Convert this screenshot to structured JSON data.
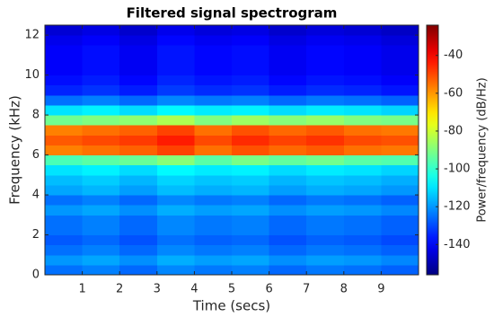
{
  "chart_data": {
    "type": "heatmap",
    "title": "Filtered signal spectrogram",
    "x_label": "Time (secs)",
    "y_label": "Frequency (kHz)",
    "colorbar_label": "Power/frequency (dB/Hz)",
    "colormap": "jet",
    "xlim": [
      0,
      10
    ],
    "xticks": [
      1,
      2,
      3,
      4,
      5,
      6,
      7,
      8,
      9
    ],
    "ylim": [
      0,
      12.5
    ],
    "yticks": [
      0,
      2,
      4,
      6,
      8,
      10,
      12
    ],
    "clim": [
      -156,
      -24
    ],
    "cticks": [
      -140,
      -120,
      -100,
      -80,
      -60,
      -40
    ],
    "z": [
      [
        -125,
        -123,
        -126,
        -122,
        -124,
        -123,
        -126,
        -124,
        -125,
        -127
      ],
      [
        -120,
        -118,
        -121,
        -117,
        -119,
        -118,
        -121,
        -119,
        -120,
        -122
      ],
      [
        -125,
        -123,
        -126,
        -122,
        -124,
        -123,
        -126,
        -124,
        -125,
        -127
      ],
      [
        -128,
        -126,
        -129,
        -125,
        -127,
        -126,
        -129,
        -127,
        -128,
        -130
      ],
      [
        -125,
        -123,
        -126,
        -122,
        -124,
        -123,
        -126,
        -124,
        -125,
        -127
      ],
      [
        -125,
        -123,
        -126,
        -122,
        -124,
        -123,
        -126,
        -124,
        -125,
        -127
      ],
      [
        -120,
        -118,
        -121,
        -117,
        -119,
        -118,
        -121,
        -119,
        -120,
        -122
      ],
      [
        -125,
        -123,
        -126,
        -122,
        -124,
        -123,
        -126,
        -124,
        -125,
        -127
      ],
      [
        -118,
        -116,
        -119,
        -115,
        -117,
        -116,
        -119,
        -117,
        -118,
        -120
      ],
      [
        -115,
        -113,
        -116,
        -112,
        -114,
        -113,
        -116,
        -114,
        -115,
        -117
      ],
      [
        -110,
        -108,
        -111,
        -107,
        -109,
        -108,
        -111,
        -109,
        -110,
        -112
      ],
      [
        -97,
        -95,
        -93,
        -89,
        -95,
        -91,
        -94,
        -92,
        -95,
        -96
      ],
      [
        -57,
        -55,
        -53,
        -49,
        -55,
        -51,
        -54,
        -52,
        -55,
        -56
      ],
      [
        -52,
        -50,
        -48,
        -44,
        -50,
        -46,
        -49,
        -47,
        -50,
        -51
      ],
      [
        -57,
        -55,
        -53,
        -49,
        -55,
        -51,
        -54,
        -52,
        -55,
        -56
      ],
      [
        -92,
        -90,
        -88,
        -84,
        -90,
        -86,
        -89,
        -87,
        -90,
        -91
      ],
      [
        -110,
        -108,
        -111,
        -107,
        -109,
        -108,
        -111,
        -109,
        -110,
        -112
      ],
      [
        -125,
        -123,
        -126,
        -122,
        -124,
        -123,
        -126,
        -124,
        -125,
        -127
      ],
      [
        -135,
        -133,
        -136,
        -132,
        -134,
        -133,
        -136,
        -134,
        -135,
        -137
      ],
      [
        -138,
        -136,
        -139,
        -135,
        -137,
        -136,
        -139,
        -137,
        -138,
        -140
      ],
      [
        -140,
        -138,
        -141,
        -137,
        -139,
        -138,
        -141,
        -139,
        -140,
        -142
      ],
      [
        -140,
        -138,
        -141,
        -137,
        -139,
        -138,
        -141,
        -139,
        -140,
        -142
      ],
      [
        -140,
        -138,
        -141,
        -137,
        -139,
        -138,
        -141,
        -139,
        -140,
        -142
      ],
      [
        -142,
        -140,
        -143,
        -139,
        -141,
        -140,
        -143,
        -141,
        -142,
        -144
      ],
      [
        -145,
        -143,
        -146,
        -142,
        -144,
        -143,
        -146,
        -144,
        -145,
        -147
      ]
    ]
  }
}
